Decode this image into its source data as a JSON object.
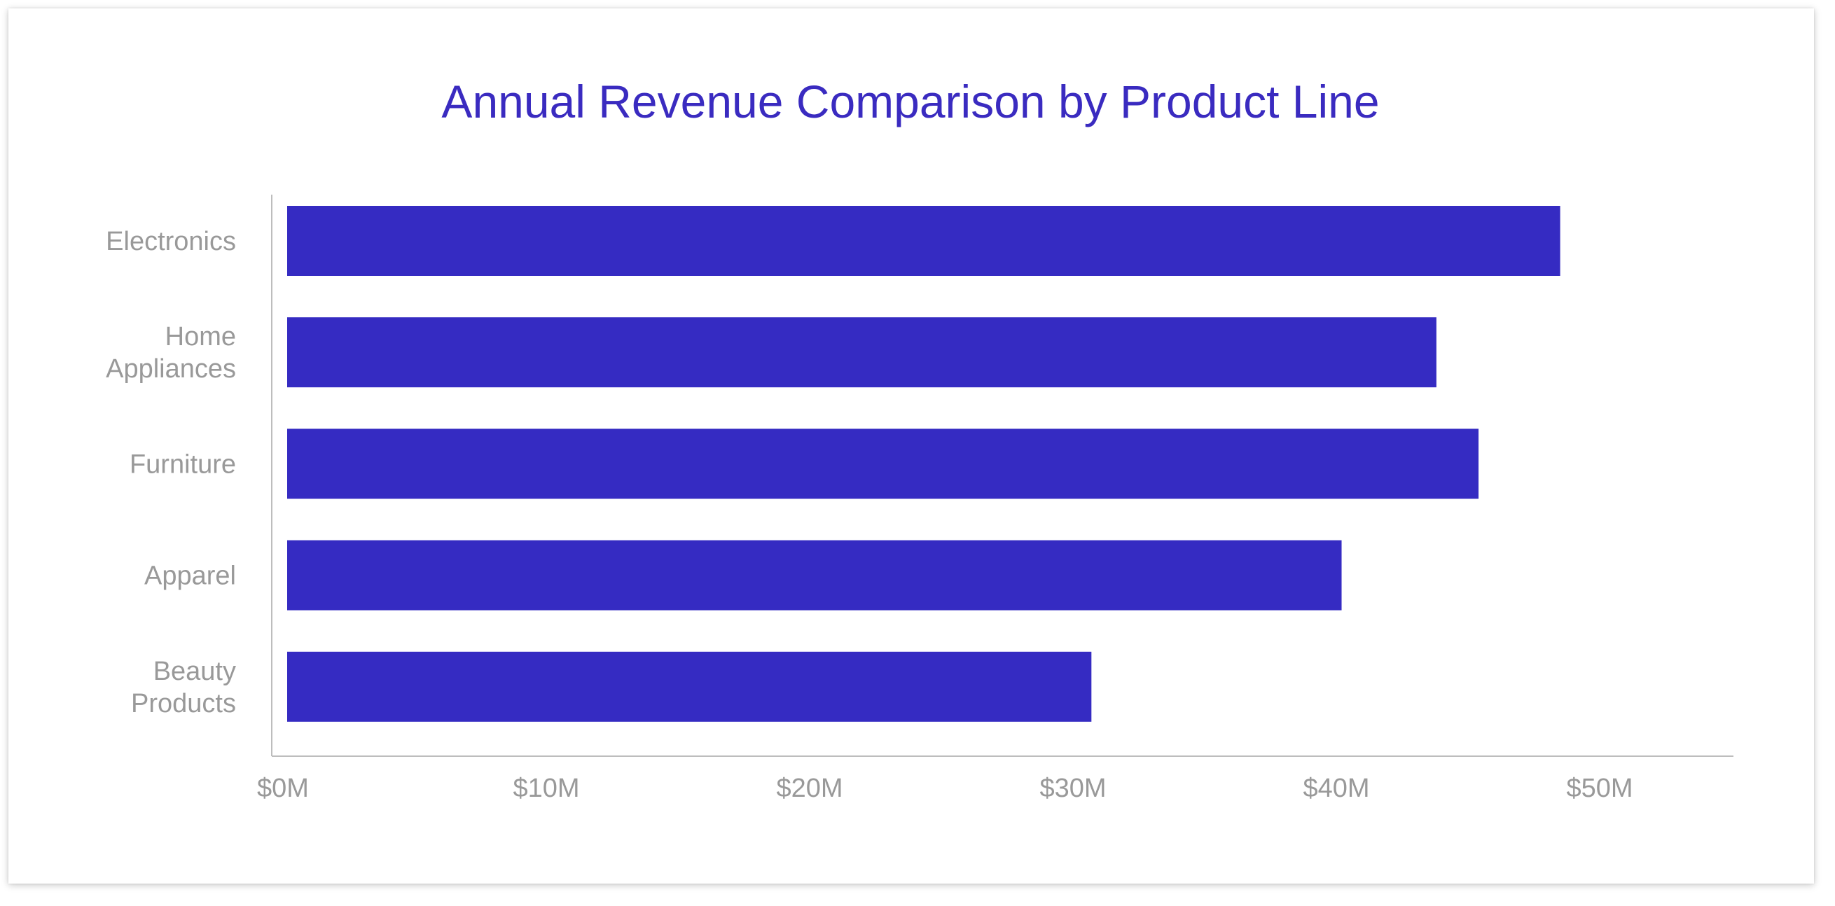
{
  "colors": {
    "title": "#3a2bc0",
    "bar": "#352bc2",
    "axis": "#bdbdbd",
    "label": "#999999"
  },
  "chart_data": {
    "type": "bar",
    "orientation": "horizontal",
    "title": "Annual Revenue Comparison by Product Line",
    "xlabel": "",
    "ylabel": "",
    "categories": [
      [
        "Electronics"
      ],
      [
        "Home",
        "Appliances"
      ],
      [
        "Furniture"
      ],
      [
        "Apparel"
      ],
      [
        "Beauty",
        "Products"
      ]
    ],
    "values": [
      48.5,
      43.8,
      45.4,
      40.2,
      30.7
    ],
    "unit": "$M",
    "xlim": [
      0,
      55
    ],
    "xticks": [
      0,
      10,
      20,
      30,
      40,
      50
    ],
    "xtick_labels": [
      "$0M",
      "$10M",
      "$20M",
      "$30M",
      "$40M",
      "$50M"
    ],
    "grid": false,
    "legend": "none"
  }
}
